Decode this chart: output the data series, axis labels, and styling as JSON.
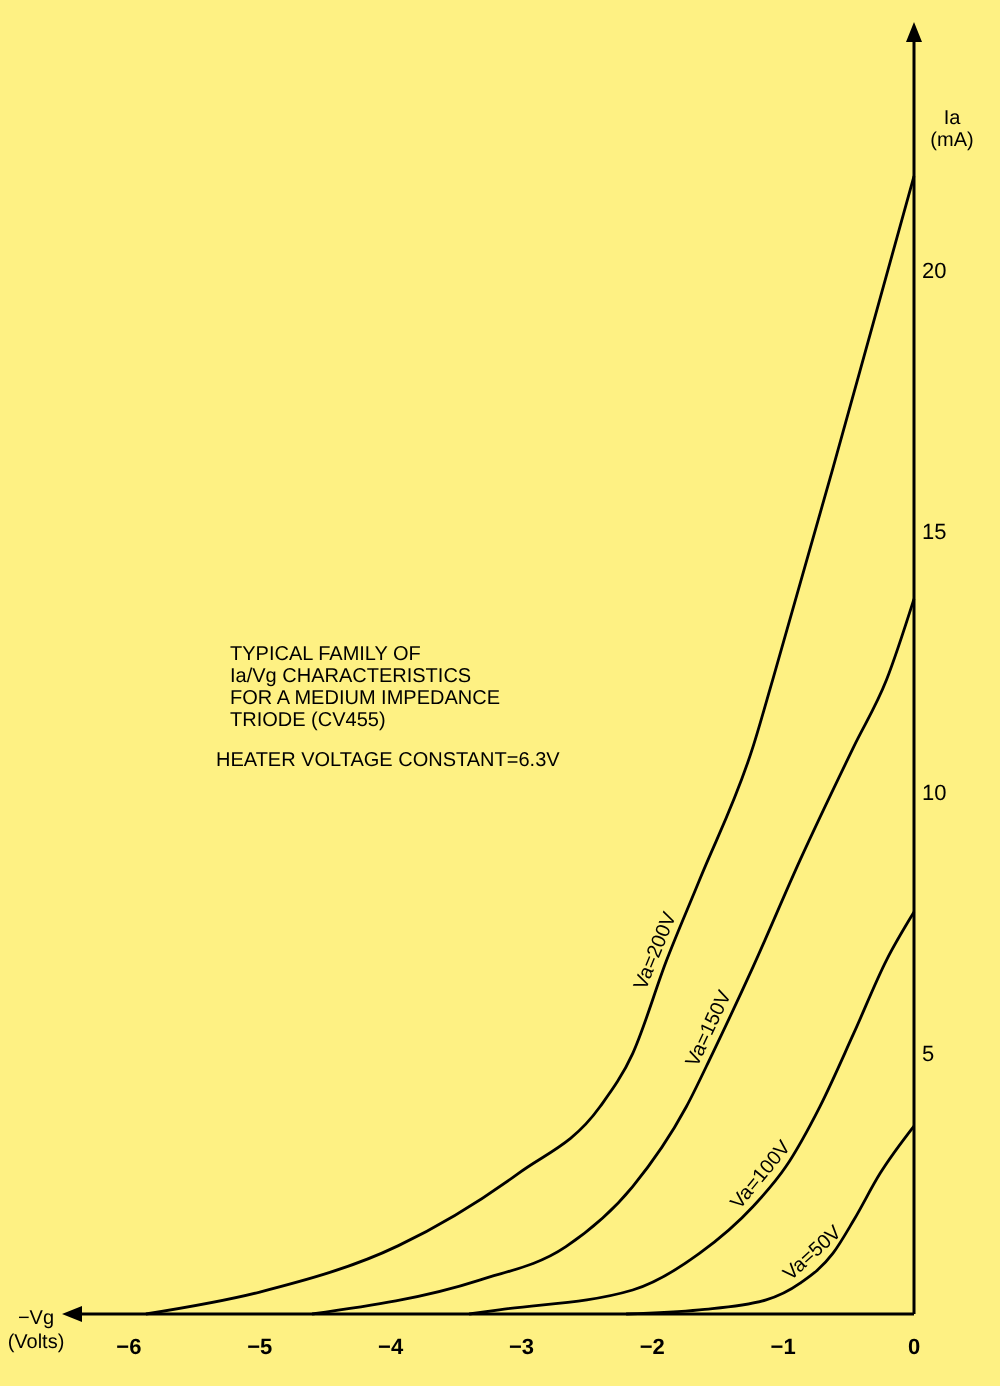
{
  "chart_data": {
    "type": "line",
    "title": "TYPICAL FAMILY OF\nIa/Vg CHARACTERISTICS\nFOR A MEDIUM IMPEDANCE\nTRIODE (CV455)",
    "annotations": [
      "HEATER VOLTAGE CONSTANT=6.3V"
    ],
    "xlabel": "−Vg\n(Volts)",
    "ylabel": "Ia\n(mA)",
    "xlim": [
      -6.45,
      0
    ],
    "ylim": [
      0,
      24.6
    ],
    "xticks": [
      {
        "value": -6,
        "label": "−6"
      },
      {
        "value": -5,
        "label": "−5"
      },
      {
        "value": -4,
        "label": "−4"
      },
      {
        "value": -3,
        "label": "−3"
      },
      {
        "value": -2,
        "label": "−2"
      },
      {
        "value": -1,
        "label": "−1"
      },
      0
    ],
    "yticks": [
      5,
      10,
      15,
      20
    ],
    "grid": false,
    "marker": "none",
    "line_style": "solid",
    "series": [
      {
        "name": "Va=200V",
        "color": "#000000",
        "x": [
          -5.87,
          -5.0,
          -3.94,
          -3.02,
          -2.4,
          -2.15,
          -1.89,
          -1.64,
          -1.23,
          -1.08,
          -0.62,
          -0.31,
          0
        ],
        "values": [
          0,
          0.42,
          1.31,
          2.7,
          3.97,
          4.99,
          6.78,
          8.31,
          10.87,
          12.15,
          16.2,
          19.0,
          21.8
        ]
      },
      {
        "name": "Va=150V",
        "color": "#000000",
        "x": [
          -4.6,
          -3.32,
          -2.66,
          -2.15,
          -1.74,
          -1.54,
          -1.23,
          -0.87,
          -0.46,
          -0.21,
          0
        ],
        "values": [
          0,
          0.65,
          1.29,
          2.44,
          3.97,
          4.99,
          6.65,
          8.7,
          10.87,
          12.15,
          13.7
        ]
      },
      {
        "name": "Va=100V",
        "color": "#000000",
        "x": [
          -3.4,
          -3.17,
          -2.15,
          -1.64,
          -1.23,
          -0.98,
          -0.72,
          -0.46,
          -0.21,
          0
        ],
        "values": [
          0,
          0.08,
          0.46,
          1.16,
          2.06,
          2.82,
          3.97,
          5.38,
          6.78,
          7.7
        ]
      },
      {
        "name": "Va=50V",
        "color": "#000000",
        "x": [
          -2.2,
          -1.64,
          -1.13,
          -0.87,
          -0.62,
          -0.46,
          -0.26,
          0
        ],
        "values": [
          0,
          0.08,
          0.27,
          0.59,
          1.16,
          1.8,
          2.69,
          3.6
        ]
      }
    ]
  }
}
